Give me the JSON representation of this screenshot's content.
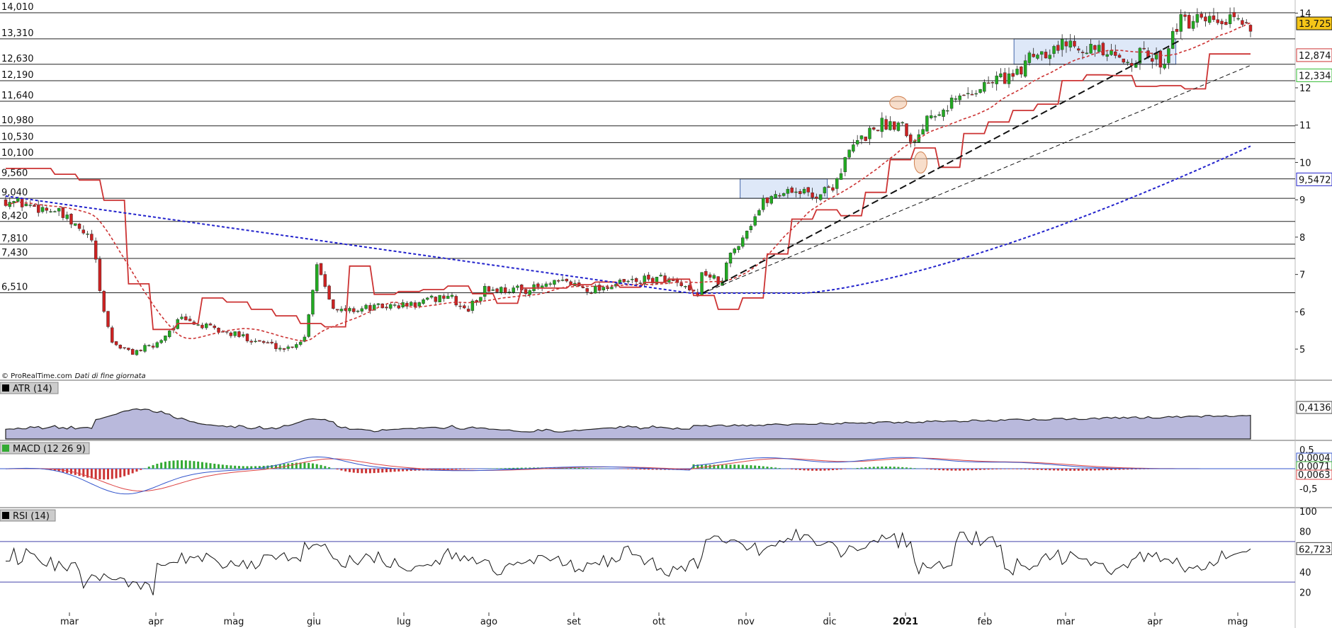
{
  "chart_data": [
    {
      "type": "candlestick",
      "panel": "price",
      "credit": "© ProRealTime.com",
      "credit_note": "Dati di fine giornata",
      "x_labels": [
        "mar",
        "apr",
        "mag",
        "giu",
        "lug",
        "ago",
        "set",
        "ott",
        "nov",
        "dic",
        "2021",
        "feb",
        "mar",
        "apr",
        "mag"
      ],
      "y_ticks": [
        "14",
        "12",
        "11",
        "10",
        "9",
        "8",
        "7",
        "6",
        "5"
      ],
      "ylim": [
        4.3,
        14.2
      ],
      "support_resistance_levels": [
        {
          "value": 14.01,
          "label": "14,010"
        },
        {
          "value": 13.31,
          "label": "13,310"
        },
        {
          "value": 12.63,
          "label": "12,630"
        },
        {
          "value": 12.19,
          "label": "12,190"
        },
        {
          "value": 11.64,
          "label": "11,640"
        },
        {
          "value": 10.98,
          "label": "10,980"
        },
        {
          "value": 10.53,
          "label": "10,530"
        },
        {
          "value": 10.1,
          "label": "10,100"
        },
        {
          "value": 9.56,
          "label": "9,560"
        },
        {
          "value": 9.04,
          "label": "9,040"
        },
        {
          "value": 8.42,
          "label": "8,420"
        },
        {
          "value": 7.81,
          "label": "7,810"
        },
        {
          "value": 7.43,
          "label": "7,430"
        },
        {
          "value": 6.51,
          "label": "6,510"
        }
      ],
      "price_path": [
        [
          0,
          9.0
        ],
        [
          0.04,
          8.7
        ],
        [
          0.07,
          7.9
        ],
        [
          0.075,
          6.6
        ],
        [
          0.085,
          5.2
        ],
        [
          0.1,
          4.9
        ],
        [
          0.12,
          5.1
        ],
        [
          0.14,
          5.8
        ],
        [
          0.17,
          5.5
        ],
        [
          0.2,
          5.25
        ],
        [
          0.225,
          5.0
        ],
        [
          0.24,
          5.3
        ],
        [
          0.25,
          7.3
        ],
        [
          0.265,
          6.0
        ],
        [
          0.29,
          6.1
        ],
        [
          0.33,
          6.2
        ],
        [
          0.355,
          6.45
        ],
        [
          0.37,
          6.0
        ],
        [
          0.385,
          6.6
        ],
        [
          0.42,
          6.6
        ],
        [
          0.45,
          6.8
        ],
        [
          0.47,
          6.6
        ],
        [
          0.5,
          6.8
        ],
        [
          0.53,
          6.9
        ],
        [
          0.555,
          6.4
        ],
        [
          0.56,
          7.1
        ],
        [
          0.575,
          6.7
        ],
        [
          0.58,
          7.4
        ],
        [
          0.595,
          8.2
        ],
        [
          0.61,
          9.0
        ],
        [
          0.63,
          9.3
        ],
        [
          0.65,
          9.1
        ],
        [
          0.665,
          9.4
        ],
        [
          0.68,
          10.4
        ],
        [
          0.7,
          11.0
        ],
        [
          0.72,
          11.1
        ],
        [
          0.73,
          10.5
        ],
        [
          0.74,
          11.3
        ],
        [
          0.77,
          11.8
        ],
        [
          0.8,
          12.3
        ],
        [
          0.815,
          12.3
        ],
        [
          0.82,
          12.9
        ],
        [
          0.845,
          13.1
        ],
        [
          0.86,
          13.25
        ],
        [
          0.875,
          13.0
        ],
        [
          0.895,
          12.7
        ],
        [
          0.915,
          12.9
        ],
        [
          0.93,
          12.7
        ],
        [
          0.94,
          13.73
        ]
      ],
      "series": [
        {
          "name": "",
          "color": "#cc3333",
          "style": "solid",
          "last": 12.874,
          "last_label": "12,874"
        },
        {
          "name": "",
          "color": "#33bb33",
          "style": "solid",
          "last": 12.334,
          "last_label": "12,334"
        },
        {
          "name": "",
          "color": "#2222cc",
          "style": "dotted",
          "last": 9.5472,
          "last_label": "9,5472"
        }
      ],
      "last_price": 13.725,
      "last_price_label": "13,725",
      "highlight_boxes": [
        {
          "from": 0.59,
          "to": 0.66,
          "low": 9.04,
          "high": 9.56
        },
        {
          "from": 0.81,
          "to": 0.94,
          "low": 12.63,
          "high": 13.31
        }
      ],
      "colors": {
        "up": "#22aa22",
        "down": "#cc2222",
        "box": "#c8d8f4"
      }
    },
    {
      "type": "area",
      "panel": "ATR",
      "title": "ATR (14)",
      "last_label": "0,4136",
      "fill": "#b9b9dc"
    },
    {
      "type": "macd",
      "panel": "MACD",
      "title": "MACD (12 26 9)",
      "y_ticks": [
        "0,5",
        "-0,5"
      ],
      "labels": [
        "0,0004",
        "0,0071",
        "0,0063"
      ],
      "colors": {
        "macd": "#3355cc",
        "signal": "#dd4444",
        "hist_pos": "#33aa33",
        "hist_neg": "#cc3333"
      }
    },
    {
      "type": "line",
      "panel": "RSI",
      "title": "RSI (14)",
      "y_ticks": [
        "100",
        "80",
        "40",
        "20"
      ],
      "levels": [
        70,
        30
      ],
      "last_label": "62,723",
      "color": "#111111"
    }
  ]
}
